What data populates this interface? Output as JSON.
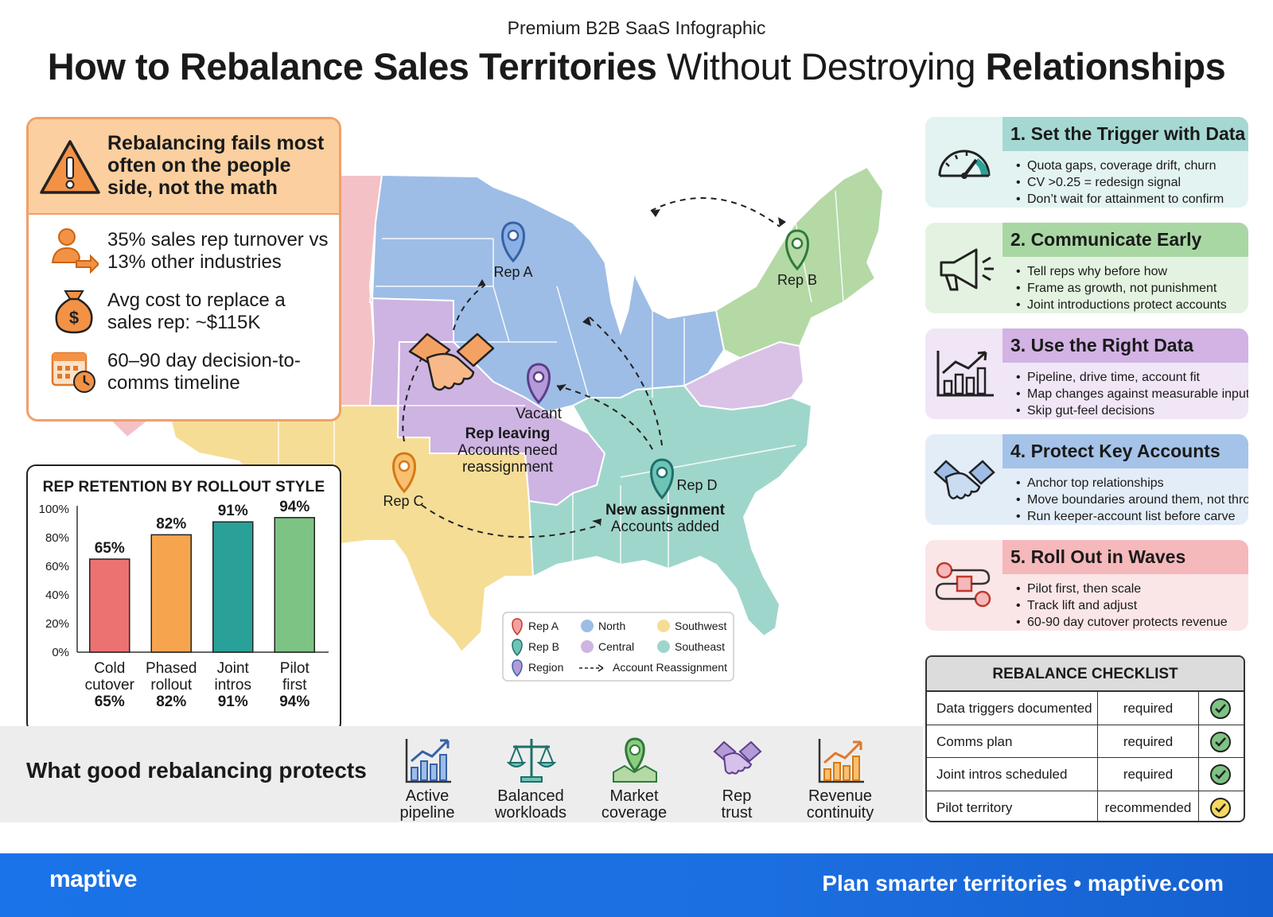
{
  "header": {
    "kicker": "Premium B2B SaaS Infographic",
    "title_part1": "How to Rebalance Sales Territories",
    "title_part2": " Without Destroying ",
    "title_part3": "Relationships"
  },
  "warning": {
    "headline": "Rebalancing fails most often on the people side, not the math",
    "stats": [
      {
        "icon": "rep-turnover-icon",
        "text": "35% sales rep turnover vs 13% other industries"
      },
      {
        "icon": "money-bag-icon",
        "text": "Avg cost to replace a sales rep: ~$115K"
      },
      {
        "icon": "calendar-clock-icon",
        "text": "60–90 day decision-to-comms timeline"
      }
    ]
  },
  "chart_data": {
    "type": "bar",
    "title": "REP RETENTION BY ROLLOUT STYLE",
    "categories": [
      "Cold cutover",
      "Phased rollout",
      "Joint intros",
      "Pilot first"
    ],
    "category_lines": [
      [
        "Cold",
        "cutover"
      ],
      [
        "Phased",
        "rollout"
      ],
      [
        "Joint",
        "intros"
      ],
      [
        "Pilot",
        "first"
      ]
    ],
    "values": [
      65,
      82,
      91,
      94
    ],
    "value_labels": [
      "65%",
      "82%",
      "91%",
      "94%"
    ],
    "colors": [
      "#ec7272",
      "#f6a54e",
      "#2aa198",
      "#7dc383"
    ],
    "ylim": [
      0,
      100
    ],
    "yticks": [
      "0%",
      "20%",
      "40%",
      "60%",
      "80%",
      "100%"
    ],
    "yticks_values": [
      0,
      20,
      40,
      60,
      80,
      100
    ]
  },
  "map": {
    "reps": {
      "rep_a": "Rep A",
      "rep_b": "Rep B",
      "rep_c": "Rep C",
      "rep_d": "Rep D",
      "vacant": "Vacant"
    },
    "rep_leaving_title": "Rep leaving",
    "rep_leaving_sub1": "Accounts need",
    "rep_leaving_sub2": "reassignment",
    "new_assignment_title": "New assignment",
    "new_assignment_sub": "Accounts added",
    "legend": {
      "rep_a": "Rep A",
      "rep_b": "Rep B",
      "region": "Region",
      "north": "North",
      "central": "Central",
      "reassign": "Account Reassignment",
      "southwest": "Southwest",
      "southeast": "Southeast"
    },
    "colors": {
      "north": "#9dbde6",
      "central": "#cdb4e2",
      "southwest": "#f6dd96",
      "southeast": "#9fd6cb",
      "northeast": "#b4d9a5",
      "west": "#f4c2c6",
      "mid": "#d9c2e6"
    }
  },
  "steps": [
    {
      "title": "1. Set the Trigger with Data",
      "icon": "gauge-icon",
      "head": "#a6d8d3",
      "body": "#e3f3f1",
      "bullets": [
        "Quota gaps, coverage drift, churn",
        "CV >0.25 = redesign signal",
        "Don’t wait for attainment to confirm"
      ]
    },
    {
      "title": "2. Communicate Early",
      "icon": "megaphone-icon",
      "head": "#a9d7a4",
      "body": "#e4f3e1",
      "bullets": [
        "Tell reps why before how",
        "Frame as growth, not punishment",
        "Joint introductions protect accounts"
      ]
    },
    {
      "title": "3. Use the Right Data",
      "icon": "bar-trend-icon",
      "head": "#d2b3e4",
      "body": "#f0e6f6",
      "bullets": [
        "Pipeline, drive time, account fit",
        "Map changes against measurable inputs",
        "Skip gut-feel decisions"
      ]
    },
    {
      "title": "4. Protect Key Accounts",
      "icon": "handshake-icon",
      "head": "#a5c3e8",
      "body": "#e3edf8",
      "bullets": [
        "Anchor top relationships",
        "Move boundaries around them, not through",
        "Run keeper-account list before carve"
      ]
    },
    {
      "title": "5. Roll Out in Waves",
      "icon": "workflow-icon",
      "head": "#f5b8bb",
      "body": "#fbe6e7",
      "bullets": [
        "Pilot first, then scale",
        "Track lift and adjust",
        "60-90 day cutover protects revenue"
      ]
    }
  ],
  "protects": {
    "title": "What good rebalancing protects",
    "items": [
      {
        "icon": "pipeline-chart-icon",
        "l1": "Active",
        "l2": "pipeline"
      },
      {
        "icon": "scales-icon",
        "l1": "Balanced",
        "l2": "workloads"
      },
      {
        "icon": "map-pin-icon",
        "l1": "Market",
        "l2": "coverage"
      },
      {
        "icon": "handshake-icon",
        "l1": "Rep",
        "l2": "trust"
      },
      {
        "icon": "revenue-chart-icon",
        "l1": "Revenue",
        "l2": "continuity"
      }
    ]
  },
  "checklist": {
    "title": "REBALANCE CHECKLIST",
    "rows": [
      {
        "item": "Data triggers documented",
        "status": "required",
        "mark": "green"
      },
      {
        "item": "Comms plan",
        "status": "required",
        "mark": "green"
      },
      {
        "item": "Joint intros scheduled",
        "status": "required",
        "mark": "green"
      },
      {
        "item": "Pilot territory",
        "status": "recommended",
        "mark": "yellow"
      }
    ]
  },
  "footer": {
    "logo": "maptive",
    "tagline": "Plan smarter territories  •  maptive.com"
  }
}
